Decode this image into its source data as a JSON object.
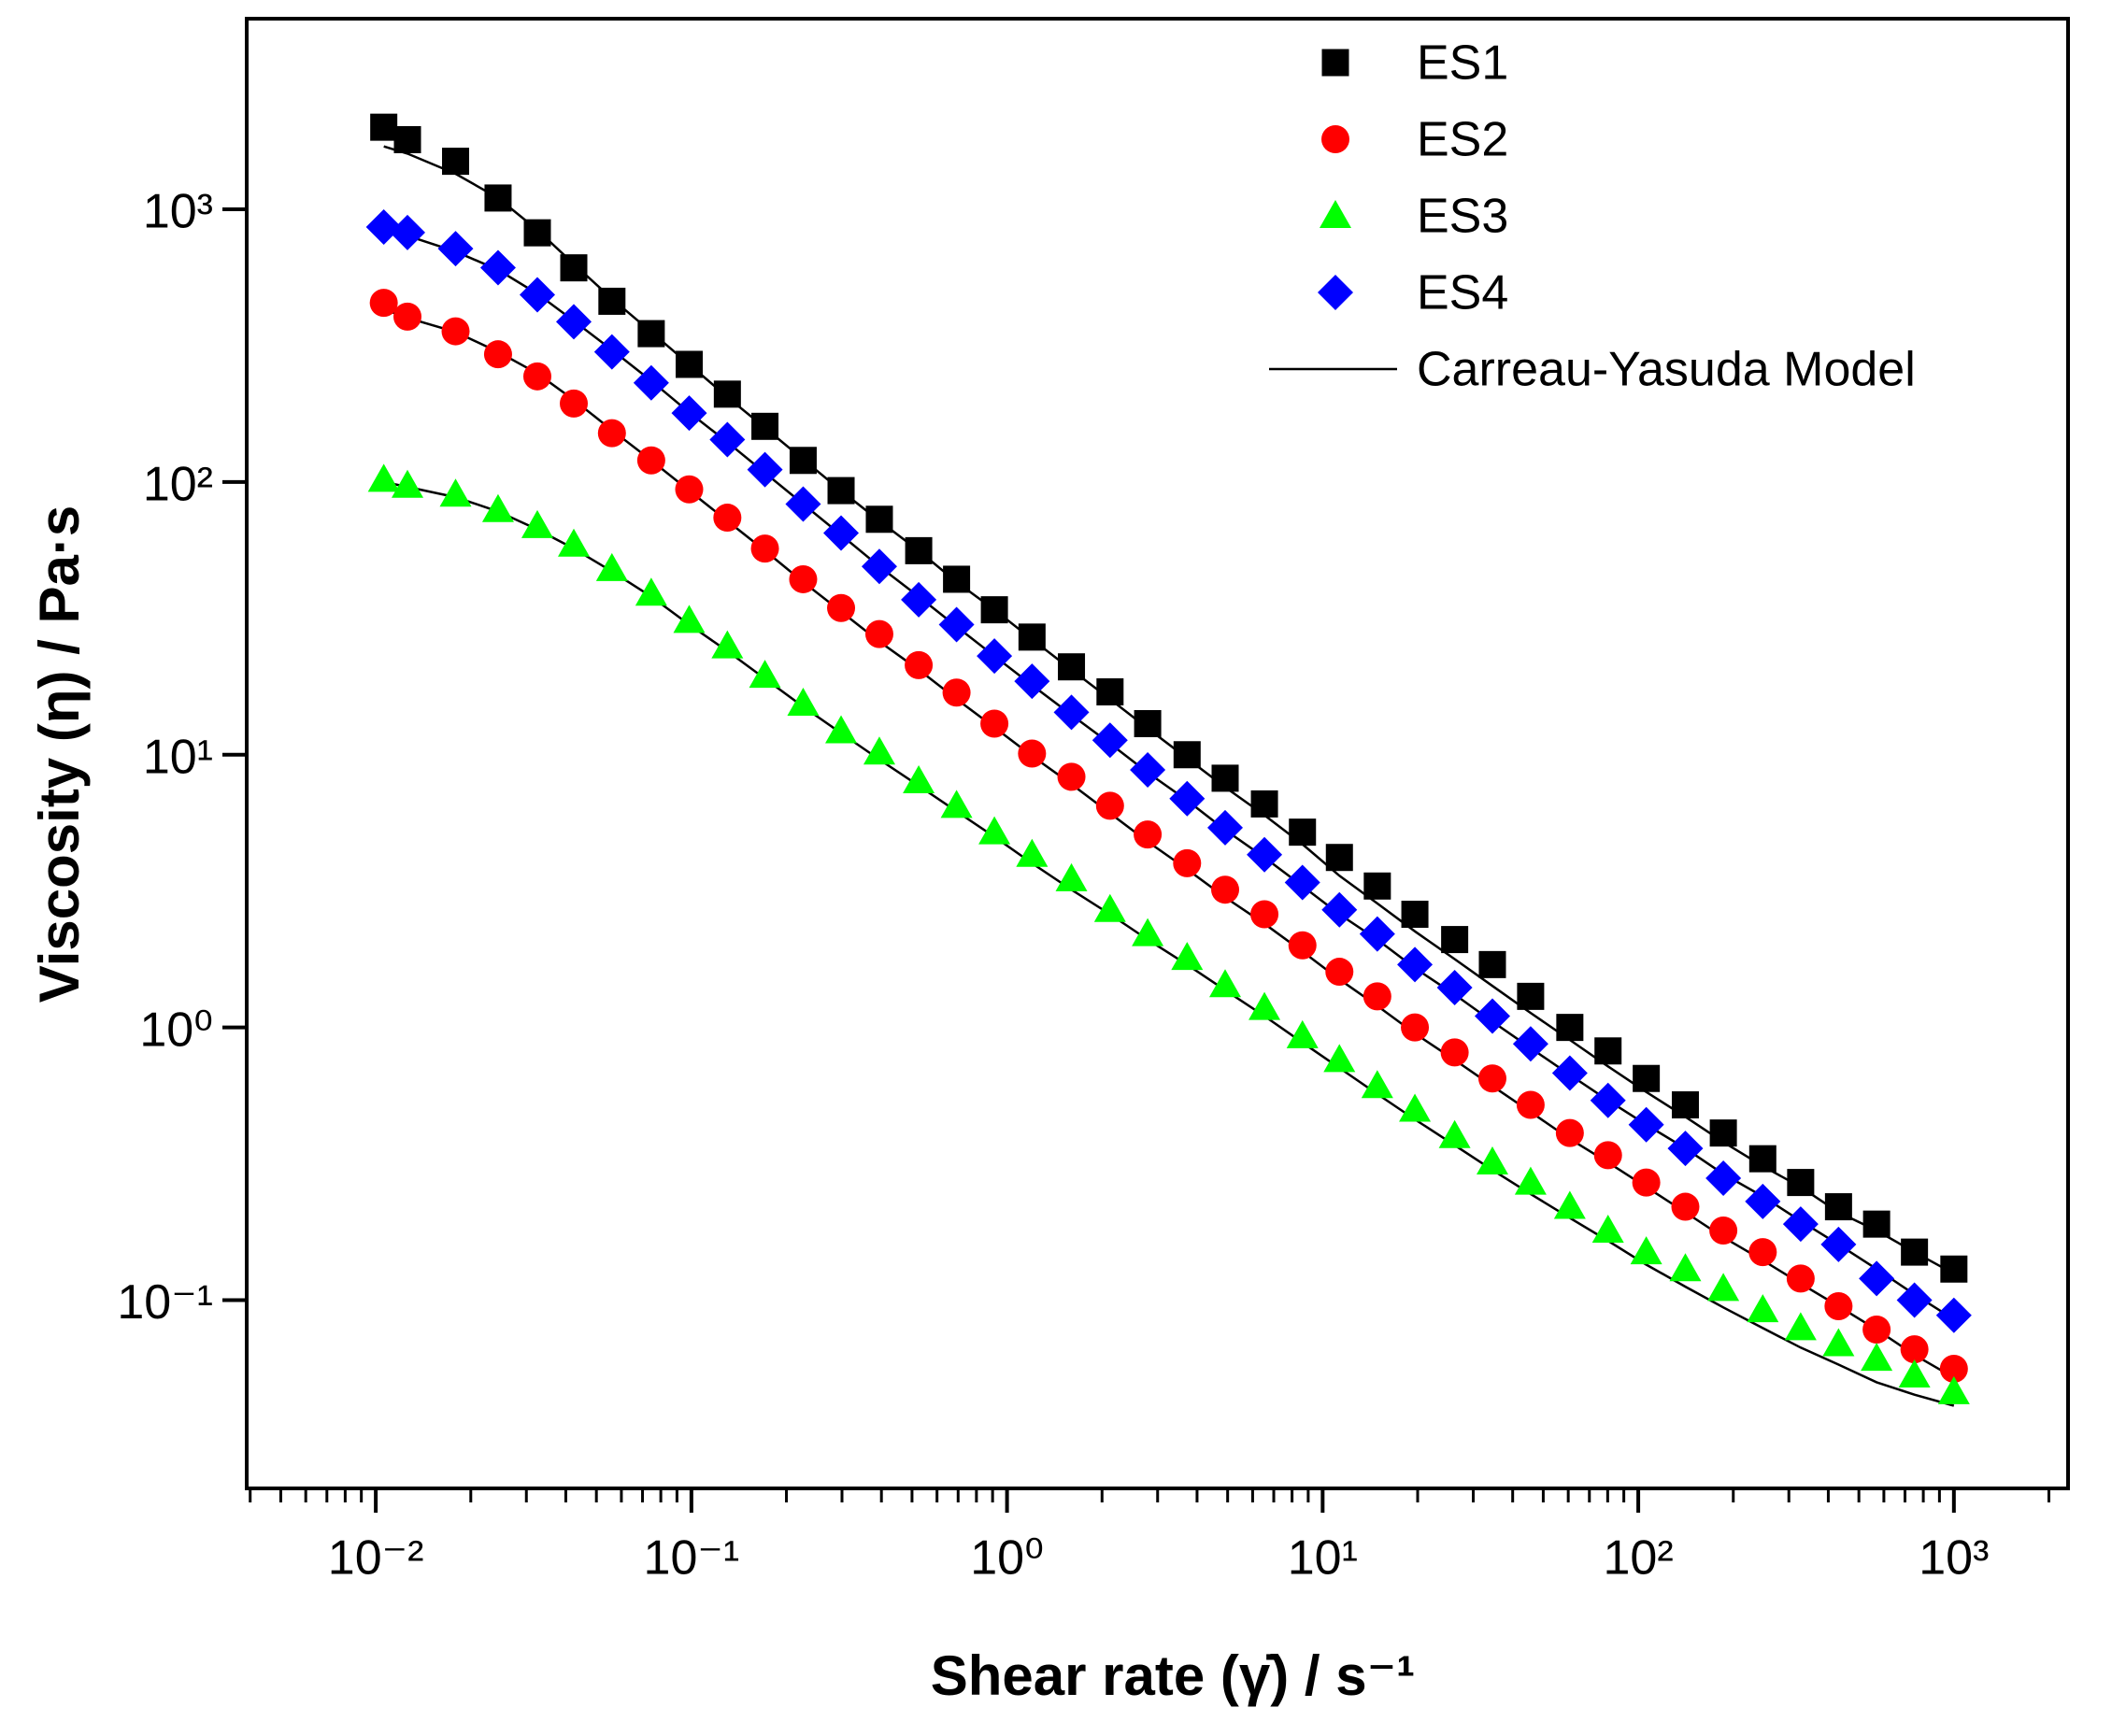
{
  "chart_data": {
    "type": "scatter",
    "x_label": "Shear rate (γ̇) / s⁻¹",
    "y_label": "Viscosity (η) / Pa·s",
    "xscale": "log",
    "yscale": "log",
    "xlim": [
      0.0039,
      2300
    ],
    "ylim": [
      0.0204,
      5000
    ],
    "xticks": [
      {
        "value": 0.01,
        "label": "10⁻²"
      },
      {
        "value": 0.1,
        "label": "10⁻¹"
      },
      {
        "value": 1,
        "label": "10⁰"
      },
      {
        "value": 10,
        "label": "10¹"
      },
      {
        "value": 100,
        "label": "10²"
      },
      {
        "value": 1000,
        "label": "10³"
      }
    ],
    "xminorticks": [
      0.004,
      0.005,
      0.006,
      0.007,
      0.008,
      0.009,
      0.02,
      0.03,
      0.04,
      0.05,
      0.06,
      0.07,
      0.08,
      0.09,
      0.2,
      0.3,
      0.4,
      0.5,
      0.6,
      0.7,
      0.8,
      0.9,
      2,
      3,
      4,
      5,
      6,
      7,
      8,
      9,
      20,
      30,
      40,
      50,
      60,
      70,
      80,
      90,
      200,
      300,
      400,
      500,
      600,
      700,
      800,
      900,
      2000
    ],
    "yticks": [
      {
        "value": 0.1,
        "label": "10⁻¹"
      },
      {
        "value": 1,
        "label": "10⁰"
      },
      {
        "value": 10,
        "label": "10¹"
      },
      {
        "value": 100,
        "label": "10²"
      },
      {
        "value": 1000,
        "label": "10³"
      }
    ],
    "legend": "upper right",
    "x": [
      0.0106,
      0.0126,
      0.0179,
      0.0244,
      0.0325,
      0.0424,
      0.056,
      0.0746,
      0.0984,
      0.13,
      0.171,
      0.226,
      0.298,
      0.394,
      0.525,
      0.692,
      0.912,
      1.2,
      1.6,
      2.12,
      2.79,
      3.72,
      4.91,
      6.54,
      8.63,
      11.3,
      14.9,
      19.6,
      26.2,
      34.5,
      45.6,
      60.7,
      80.2,
      106,
      141,
      186,
      248,
      327,
      431,
      569,
      750,
      1000
    ],
    "series": [
      {
        "name": "ES1",
        "color": "#000000",
        "marker": "square",
        "values": [
          2000,
          1800,
          1500,
          1100,
          820,
          610,
          460,
          350,
          270,
          210,
          160,
          120,
          93,
          73,
          56,
          44,
          34,
          27,
          21,
          17,
          13,
          10,
          8.2,
          6.6,
          5.2,
          4.2,
          3.3,
          2.6,
          2.1,
          1.7,
          1.3,
          1.0,
          0.82,
          0.65,
          0.52,
          0.41,
          0.33,
          0.27,
          0.22,
          0.19,
          0.15,
          0.13
        ]
      },
      {
        "name": "ES2",
        "color": "#ff0000",
        "marker": "circle",
        "values": [
          454,
          404,
          357,
          294,
          244,
          194,
          151,
          120,
          94,
          74,
          57,
          44,
          34.5,
          27.7,
          21.3,
          16.9,
          13,
          10.1,
          8.3,
          6.5,
          5.1,
          4,
          3.2,
          2.6,
          2,
          1.6,
          1.3,
          1,
          0.81,
          0.65,
          0.52,
          0.41,
          0.34,
          0.27,
          0.22,
          0.18,
          0.15,
          0.12,
          0.095,
          0.078,
          0.066,
          0.056
        ]
      },
      {
        "name": "ES3",
        "color": "#00ff00",
        "marker": "triangle",
        "values": [
          102,
          97,
          90,
          79,
          69,
          59,
          48,
          39,
          31,
          25,
          19.5,
          15.4,
          12.2,
          10.2,
          8,
          6.5,
          5.2,
          4.3,
          3.5,
          2.7,
          2.2,
          1.8,
          1.43,
          1.18,
          0.93,
          0.76,
          0.61,
          0.5,
          0.4,
          0.32,
          0.27,
          0.22,
          0.18,
          0.15,
          0.13,
          0.11,
          0.092,
          0.079,
          0.069,
          0.061,
          0.053,
          0.046
        ]
      },
      {
        "name": "ES4",
        "color": "#0000ff",
        "marker": "diamond",
        "values": [
          861,
          822,
          717,
          611,
          486,
          387,
          300,
          231,
          179,
          143,
          111,
          83,
          65,
          49,
          37,
          30,
          23,
          18.6,
          14.3,
          11.3,
          8.8,
          6.9,
          5.4,
          4.3,
          3.4,
          2.7,
          2.2,
          1.7,
          1.4,
          1.1,
          0.87,
          0.68,
          0.54,
          0.44,
          0.36,
          0.28,
          0.23,
          0.19,
          0.16,
          0.12,
          0.1,
          0.088
        ]
      }
    ],
    "model": {
      "name": "Carreau-Yasuda Model",
      "color": "#000000",
      "curves": [
        [
          1700,
          1600,
          1350,
          1100,
          840,
          630,
          470,
          355,
          270,
          205,
          158,
          121,
          93,
          72,
          56,
          43,
          34,
          26.5,
          20.5,
          16,
          12.5,
          9.7,
          7.6,
          6.0,
          4.7,
          3.6,
          2.85,
          2.25,
          1.78,
          1.42,
          1.13,
          0.9,
          0.72,
          0.58,
          0.47,
          0.38,
          0.31,
          0.26,
          0.21,
          0.18,
          0.15,
          0.125
        ],
        [
          430,
          400,
          355,
          300,
          250,
          200,
          155,
          120,
          93,
          72,
          56,
          43,
          33.5,
          26,
          20.5,
          16,
          12.6,
          9.9,
          7.8,
          6.1,
          4.8,
          3.8,
          3.0,
          2.4,
          1.9,
          1.5,
          1.2,
          0.95,
          0.76,
          0.61,
          0.49,
          0.39,
          0.32,
          0.26,
          0.21,
          0.17,
          0.14,
          0.115,
          0.095,
          0.078,
          0.063,
          0.052
        ],
        [
          100,
          96,
          88,
          78,
          67,
          57,
          47,
          38,
          30,
          24,
          19,
          15,
          12,
          9.6,
          7.7,
          6.2,
          5.0,
          4.0,
          3.2,
          2.6,
          2.1,
          1.7,
          1.37,
          1.1,
          0.88,
          0.71,
          0.57,
          0.46,
          0.37,
          0.3,
          0.245,
          0.2,
          0.165,
          0.135,
          0.112,
          0.094,
          0.079,
          0.067,
          0.058,
          0.05,
          0.045,
          0.041
        ],
        [
          850,
          800,
          700,
          600,
          490,
          390,
          305,
          235,
          180,
          140,
          108,
          83,
          64,
          49,
          38,
          29.5,
          23,
          18,
          14,
          11,
          8.6,
          6.8,
          5.3,
          4.2,
          3.3,
          2.6,
          2.1,
          1.65,
          1.32,
          1.05,
          0.84,
          0.67,
          0.54,
          0.44,
          0.36,
          0.29,
          0.24,
          0.195,
          0.16,
          0.13,
          0.105,
          0.085
        ]
      ]
    }
  }
}
